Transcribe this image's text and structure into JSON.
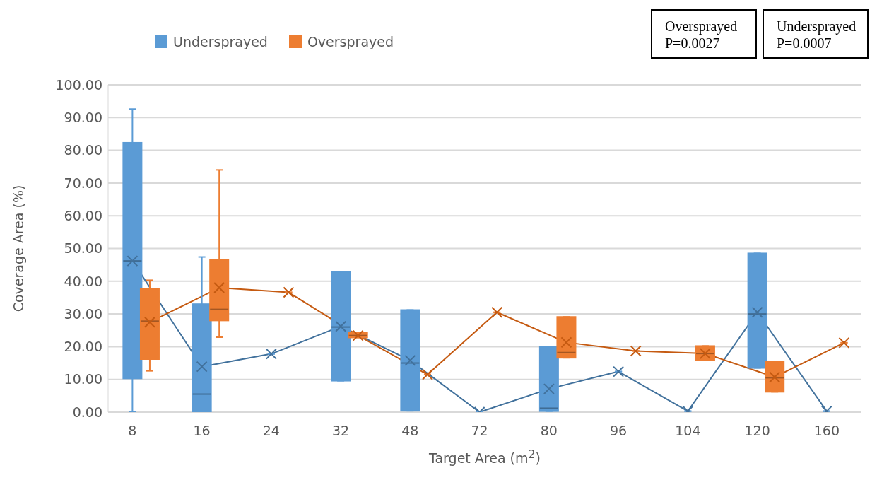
{
  "chart_data": {
    "type": "box",
    "xlabel": "Target Area (m$^{2}$)",
    "ylabel": "Coverage Area (%)",
    "categories": [
      "8",
      "16",
      "24",
      "32",
      "48",
      "72",
      "80",
      "96",
      "104",
      "120",
      "160"
    ],
    "ylim": [
      0,
      100
    ],
    "yticks": [
      {
        "value": 0,
        "label": "0.00"
      },
      {
        "value": 10,
        "label": "10.00"
      },
      {
        "value": 20,
        "label": "20.00"
      },
      {
        "value": 30,
        "label": "30.00"
      },
      {
        "value": 40,
        "label": "40.00"
      },
      {
        "value": 50,
        "label": "50.00"
      },
      {
        "value": 60,
        "label": "60.00"
      },
      {
        "value": 70,
        "label": "70.00"
      },
      {
        "value": 80,
        "label": "80.00"
      },
      {
        "value": 90,
        "label": "90.00"
      },
      {
        "value": 100,
        "label": "100.00"
      }
    ],
    "grid": "y",
    "legend": "top",
    "marker": "cross",
    "annotations": [
      "Oversprayed P=0.0027",
      "Undersprayed P=0.0007"
    ],
    "series": [
      {
        "name": "Undersprayed",
        "color": "#5b9bd5",
        "boxes": [
          {
            "low": 0,
            "q1": 10.3,
            "median": 46.2,
            "q3": 82.3,
            "high": 92.6
          },
          {
            "low": 0,
            "q1": 0,
            "median": 5.5,
            "q3": 33,
            "high": 47.4
          },
          {
            "low": 17.8,
            "q1": 17.8,
            "median": 17.8,
            "q3": 17.8,
            "high": 17.8
          },
          {
            "low": 9.6,
            "q1": 9.6,
            "median": 26,
            "q3": 42.8,
            "high": 42.8
          },
          {
            "low": 0.4,
            "q1": 0.4,
            "median": 15,
            "q3": 31.2,
            "high": 31.2
          },
          {
            "low": 0,
            "q1": 0,
            "median": 0,
            "q3": 0,
            "high": 0
          },
          {
            "low": 0.3,
            "q1": 0.3,
            "median": 1.2,
            "q3": 20,
            "high": 20
          },
          {
            "low": 12.4,
            "q1": 12.4,
            "median": 12.4,
            "q3": 12.4,
            "high": 12.4
          },
          {
            "low": 0.3,
            "q1": 0.3,
            "median": 0.3,
            "q3": 0.3,
            "high": 0.3
          },
          {
            "low": 13.5,
            "q1": 13.5,
            "median": 30,
            "q3": 48.5,
            "high": 48.5
          },
          {
            "low": 0.3,
            "q1": 0.3,
            "median": 0.3,
            "q3": 0.3,
            "high": 0.3
          }
        ]
      },
      {
        "name": "Oversprayed",
        "color": "#ed7d31",
        "boxes": [
          {
            "low": 12.6,
            "q1": 16.2,
            "median": 27.8,
            "q3": 37.7,
            "high": 40.3
          },
          {
            "low": 22.9,
            "q1": 28,
            "median": 31.4,
            "q3": 46.6,
            "high": 74
          },
          {
            "low": 36.6,
            "q1": 36.6,
            "median": 36.6,
            "q3": 36.6,
            "high": 36.6
          },
          {
            "low": 22.8,
            "q1": 22.8,
            "median": 23.4,
            "q3": 24.2,
            "high": 24.2
          },
          {
            "low": 11.5,
            "q1": 11.5,
            "median": 11.5,
            "q3": 11.5,
            "high": 11.5
          },
          {
            "low": 30.5,
            "q1": 30.5,
            "median": 30.5,
            "q3": 30.5,
            "high": 30.5
          },
          {
            "low": 16.6,
            "q1": 16.6,
            "median": 18.2,
            "q3": 29.1,
            "high": 29.1
          },
          {
            "low": 18.7,
            "q1": 18.7,
            "median": 18.7,
            "q3": 18.7,
            "high": 18.7
          },
          {
            "low": 15.9,
            "q1": 15.9,
            "median": 17.9,
            "q3": 20.2,
            "high": 20.2
          },
          {
            "low": 6.2,
            "q1": 6.2,
            "median": 10.5,
            "q3": 15.4,
            "high": 15.4
          },
          {
            "low": 21.2,
            "q1": 21.2,
            "median": 21.2,
            "q3": 21.2,
            "high": 21.2
          }
        ]
      },
      {
        "type": "line",
        "color": "#41719c",
        "values": [
          46.2,
          13.9,
          17.8,
          26.2,
          15.8,
          0,
          7.1,
          12.4,
          0.3,
          30.5,
          0.3
        ]
      },
      {
        "type": "line",
        "color": "#c55a11",
        "values": [
          27.5,
          38,
          36.6,
          23.4,
          11.5,
          30.5,
          21.3,
          18.7,
          17.9,
          10.7,
          21.2
        ]
      }
    ]
  }
}
